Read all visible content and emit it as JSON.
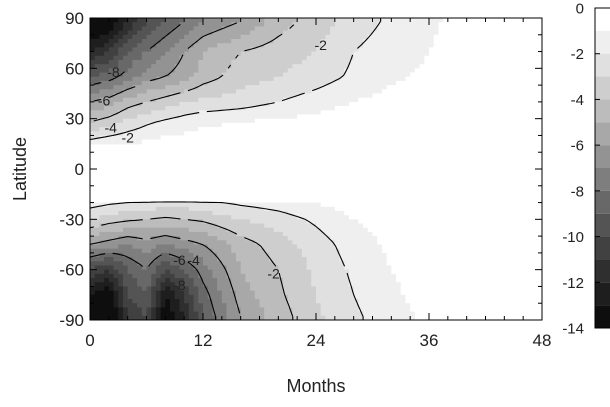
{
  "chart_data": {
    "type": "heatmap",
    "title": "",
    "xlabel": "Months",
    "ylabel": "Latitude",
    "xlim": [
      0,
      48
    ],
    "ylim": [
      -90,
      90
    ],
    "x_ticks": [
      0,
      12,
      24,
      36,
      48
    ],
    "y_ticks": [
      90,
      60,
      30,
      0,
      -30,
      -60,
      -90
    ],
    "colorbar": {
      "range": [
        -14,
        0
      ],
      "ticks": [
        0,
        -2,
        -4,
        -6,
        -8,
        -10,
        -12,
        -14
      ],
      "colors": [
        "#ffffff",
        "#efefef",
        "#e0e0e0",
        "#cecece",
        "#bcbcbc",
        "#a8a8a8",
        "#939393",
        "#7e7e7e",
        "#686868",
        "#545454",
        "#414141",
        "#2f2f2f",
        "#1e1e1e",
        "#0e0e0e"
      ]
    },
    "grid": false,
    "regions": [
      {
        "name": "north",
        "months": [
          0,
          2,
          4,
          6,
          8,
          10,
          12,
          16,
          20,
          24,
          28,
          32,
          36,
          40,
          44
        ],
        "value_by_latitude": {
          "88": [
            -15,
            -14,
            -12,
            -10,
            -9,
            -8,
            -7,
            -6,
            -4.5,
            -3.5,
            -2.5,
            -1.8,
            -1.2,
            -0.6,
            -0.2
          ],
          "70": [
            -12,
            -11,
            -9,
            -8,
            -7,
            -6,
            -5,
            -4,
            -3.5,
            -3,
            -2,
            -1.5,
            -1,
            -0.5,
            -0.2
          ],
          "55": [
            -9,
            -8.5,
            -7.5,
            -6.5,
            -6,
            -5.5,
            -4.5,
            -3.5,
            -3,
            -2.5,
            -1.8,
            -1.2,
            -0.8,
            -0.4,
            -0.1
          ],
          "40": [
            -6,
            -5.5,
            -4.5,
            -4,
            -3.5,
            -3,
            -2.8,
            -2.5,
            -2,
            -1.5,
            -1,
            -0.6,
            -0.3,
            -0.1,
            0
          ],
          "28": [
            -4,
            -3.5,
            -2.8,
            -2.2,
            -1.8,
            -1.5,
            -1.2,
            -1,
            -0.8,
            -0.6,
            -0.4,
            -0.2,
            0,
            0,
            0
          ],
          "15": [
            -1.5,
            -1.2,
            -1,
            -0.8,
            -0.6,
            -0.5,
            -0.4,
            -0.3,
            -0.2,
            -0.1,
            0,
            0,
            0,
            0,
            0
          ]
        }
      },
      {
        "name": "south",
        "months": [
          0,
          2,
          4,
          6,
          8,
          10,
          12,
          16,
          20,
          24,
          28,
          32,
          36,
          40,
          44
        ],
        "value_by_latitude": {
          "-20": [
            -1.5,
            -1.8,
            -2,
            -2.2,
            -2.5,
            -2.5,
            -2.2,
            -1.8,
            -1.5,
            -1,
            -0.5,
            -0.2,
            0,
            0,
            0
          ],
          "-30": [
            -3,
            -3.5,
            -3.8,
            -4,
            -4.2,
            -4,
            -3.8,
            -3,
            -2.5,
            -1.8,
            -1,
            -0.6,
            -0.3,
            0,
            0
          ],
          "-45": [
            -6,
            -6.5,
            -7,
            -6.5,
            -7,
            -6.5,
            -6,
            -4.5,
            -3.5,
            -2.5,
            -1.5,
            -0.8,
            -0.4,
            0,
            0
          ],
          "-60": [
            -10,
            -11,
            -9,
            -8,
            -10,
            -9,
            -7.5,
            -5,
            -4,
            -2.8,
            -1.8,
            -1,
            -0.5,
            -0.1,
            0
          ],
          "-75": [
            -13,
            -14,
            -10,
            -9,
            -13,
            -11,
            -8.5,
            -5.5,
            -4.2,
            -3,
            -2,
            -1.2,
            -0.6,
            -0.2,
            0
          ],
          "-88": [
            -14,
            -15,
            -11,
            -10,
            -14,
            -12,
            -9,
            -6,
            -4.5,
            -3.2,
            -2.2,
            -1.4,
            -0.8,
            -0.3,
            0
          ]
        }
      }
    ],
    "contour_labels": [
      {
        "text": "-2",
        "month": 24.5,
        "latitude": 73
      },
      {
        "text": "-8",
        "month": 2.5,
        "latitude": 57
      },
      {
        "text": "-6",
        "month": 1.5,
        "latitude": 40
      },
      {
        "text": "-4",
        "month": 2.2,
        "latitude": 24
      },
      {
        "text": "-2",
        "month": 4.0,
        "latitude": 18
      },
      {
        "text": "-6",
        "month": 9.5,
        "latitude": -55
      },
      {
        "text": "-4",
        "month": 11.0,
        "latitude": -55
      },
      {
        "text": "-8",
        "month": 9.5,
        "latitude": -70
      },
      {
        "text": "-2",
        "month": 19.5,
        "latitude": -63
      }
    ]
  }
}
